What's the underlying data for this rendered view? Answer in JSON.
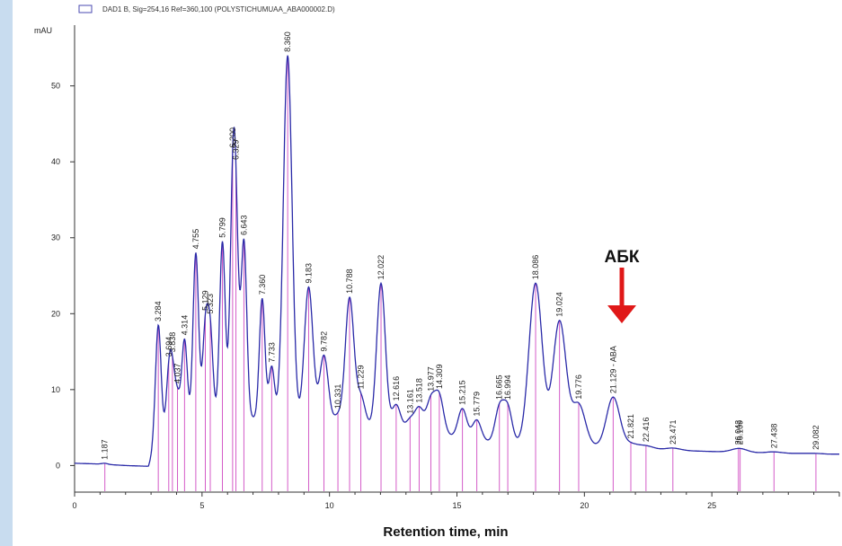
{
  "chart_data": {
    "type": "line",
    "legend": "DAD1 B, Sig=254,16 Ref=360,100 (POLYSTICHUMUAA_ABA000002.D)",
    "ylabel": "mAU",
    "xlabel": "Retention time, min",
    "xlim": [
      0,
      30
    ],
    "ylim": [
      -3.5,
      58
    ],
    "xticks": [
      0,
      5,
      10,
      15,
      20,
      25
    ],
    "xtick_labels": [
      "0",
      "5",
      "10",
      "15",
      "20",
      "25"
    ],
    "yticks": [
      0,
      10,
      20,
      30,
      40,
      50
    ],
    "ytick_labels": [
      "0",
      "10",
      "20",
      "30",
      "40",
      "50"
    ],
    "grid": false,
    "legend_position": "top-left",
    "series": [
      {
        "name": "DAD1 B, Sig=254,16 Ref=360,100 (POLYSTICHUMUAA_ABA000002.D)",
        "color": "#2a2aa8",
        "baseline": [
          [
            0,
            0.3
          ],
          [
            1,
            0.2
          ],
          [
            2,
            0.0
          ],
          [
            2.9,
            -0.1
          ],
          [
            3.1,
            2
          ],
          [
            3.6,
            3.5
          ],
          [
            4.5,
            5
          ],
          [
            5.5,
            6
          ],
          [
            6.5,
            6.5
          ],
          [
            7.5,
            6
          ],
          [
            8.5,
            6
          ],
          [
            9.5,
            5.5
          ],
          [
            10.5,
            5
          ],
          [
            11.5,
            5
          ],
          [
            12.5,
            4.5
          ],
          [
            13.5,
            4.5
          ],
          [
            14.5,
            4
          ],
          [
            15.5,
            3.5
          ],
          [
            16.5,
            3
          ],
          [
            17.5,
            2.8
          ],
          [
            18.5,
            2.6
          ],
          [
            19.5,
            2.6
          ],
          [
            20.5,
            2.5
          ],
          [
            21.5,
            2.3
          ],
          [
            22.5,
            2.1
          ],
          [
            23.5,
            2
          ],
          [
            24.5,
            1.9
          ],
          [
            25.5,
            1.8
          ],
          [
            26.5,
            1.7
          ],
          [
            27.5,
            1.6
          ],
          [
            28.5,
            1.6
          ],
          [
            29.5,
            1.5
          ],
          [
            30,
            1.5
          ]
        ],
        "peaks": [
          {
            "label": "1.187",
            "rt": 1.187,
            "height": 0.3
          },
          {
            "label": "3.284",
            "rt": 3.284,
            "height": 18.5
          },
          {
            "label": "3.694",
            "rt": 3.694,
            "height": 11
          },
          {
            "label": "3.838",
            "rt": 3.838,
            "height": 10.5
          },
          {
            "label": "4.037",
            "rt": 4.037,
            "height": 8.5
          },
          {
            "label": "4.314",
            "rt": 4.314,
            "height": 16.5
          },
          {
            "label": "4.755",
            "rt": 4.755,
            "height": 28
          },
          {
            "label": "5.129",
            "rt": 5.129,
            "height": 17.5
          },
          {
            "label": "5.323",
            "rt": 5.323,
            "height": 17
          },
          {
            "label": "5.799",
            "rt": 5.799,
            "height": 29.5
          },
          {
            "label": "6.200",
            "rt": 6.2,
            "height": 31
          },
          {
            "label": "6.329",
            "rt": 6.329,
            "height": 27
          },
          {
            "label": "6.643",
            "rt": 6.643,
            "height": 29.5
          },
          {
            "label": "7.360",
            "rt": 7.36,
            "height": 22
          },
          {
            "label": "7.733",
            "rt": 7.733,
            "height": 13
          },
          {
            "label": "8.360",
            "rt": 8.36,
            "height": 54
          },
          {
            "label": "9.183",
            "rt": 9.183,
            "height": 23.5
          },
          {
            "label": "9.782",
            "rt": 9.782,
            "height": 14.5
          },
          {
            "label": "10.331",
            "rt": 10.331,
            "height": 6.5
          },
          {
            "label": "10.788",
            "rt": 10.788,
            "height": 22
          },
          {
            "label": "11.229",
            "rt": 11.229,
            "height": 9
          },
          {
            "label": "12.022",
            "rt": 12.022,
            "height": 24
          },
          {
            "label": "12.616",
            "rt": 12.616,
            "height": 8
          },
          {
            "label": "13.161",
            "rt": 13.161,
            "height": 6
          },
          {
            "label": "13.518",
            "rt": 13.518,
            "height": 7.5
          },
          {
            "label": "13.977",
            "rt": 13.977,
            "height": 8.5
          },
          {
            "label": "14.309",
            "rt": 14.309,
            "height": 9
          },
          {
            "label": "15.215",
            "rt": 15.215,
            "height": 7.5
          },
          {
            "label": "15.779",
            "rt": 15.779,
            "height": 6
          },
          {
            "label": "16.665",
            "rt": 16.665,
            "height": 7.5
          },
          {
            "label": "16.994",
            "rt": 16.994,
            "height": 7.5
          },
          {
            "label": "18.086",
            "rt": 18.086,
            "height": 24
          },
          {
            "label": "19.024",
            "rt": 19.024,
            "height": 19
          },
          {
            "label": "19.776",
            "rt": 19.776,
            "height": 8
          },
          {
            "label": "21.129 - ABA",
            "rt": 21.129,
            "height": 9
          },
          {
            "label": "21.821",
            "rt": 21.821,
            "height": 2.8
          },
          {
            "label": "22.416",
            "rt": 22.416,
            "height": 2.6
          },
          {
            "label": "23.471",
            "rt": 23.471,
            "height": 2.3
          },
          {
            "label": "26.042",
            "rt": 26.042,
            "height": 2.0
          },
          {
            "label": "26.109",
            "rt": 26.109,
            "height": 2.0
          },
          {
            "label": "27.438",
            "rt": 27.438,
            "height": 1.8
          },
          {
            "label": "29.082",
            "rt": 29.082,
            "height": 1.6
          }
        ]
      }
    ],
    "annotation": {
      "text": "АБК",
      "rt": 21.129,
      "arrow_color": "#e01818"
    },
    "colors": {
      "trace": "#2a2aa8",
      "peak_marker": "#d45cc8",
      "arrow": "#e01818",
      "frame_left": "#c8dcef"
    }
  }
}
